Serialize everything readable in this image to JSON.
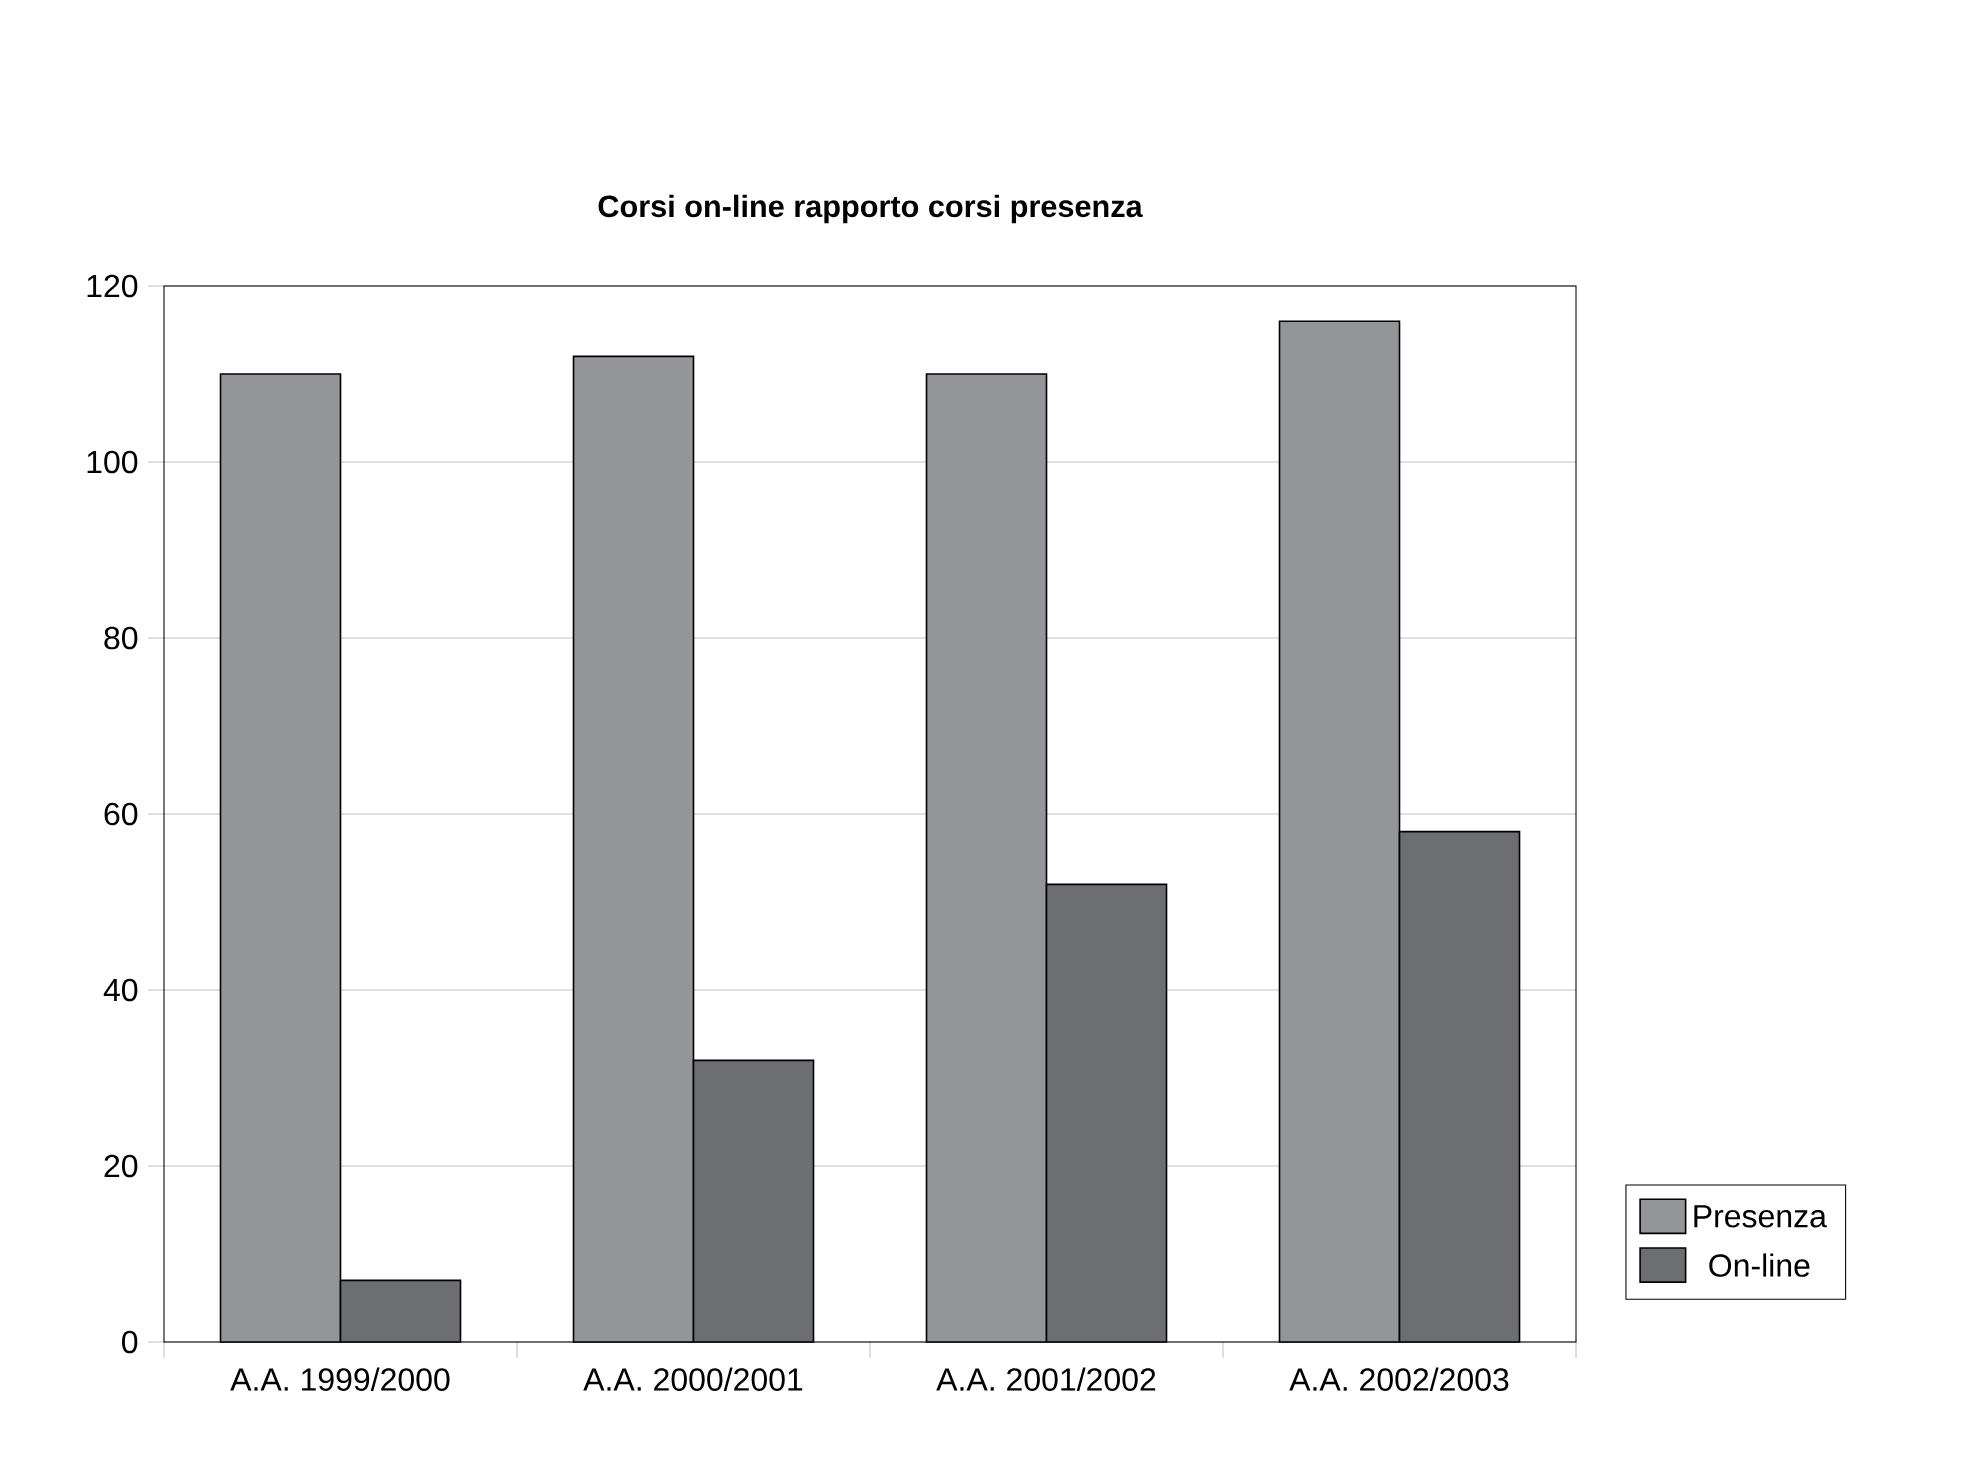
{
  "chart_data": {
    "type": "bar",
    "title": "Corsi on-line rapporto corsi presenza",
    "categories": [
      "A.A. 1999/2000",
      "A.A. 2000/2001",
      "A.A. 2001/2002",
      "A.A. 2002/2003"
    ],
    "series": [
      {
        "name": "Presenza",
        "color": "#939598",
        "values": [
          110,
          112,
          110,
          116
        ]
      },
      {
        "name": "On-line",
        "color": "#6d6e71",
        "values": [
          7,
          32,
          52,
          58
        ]
      }
    ],
    "ylim": [
      0,
      120
    ],
    "yticks": [
      0,
      20,
      40,
      60,
      80,
      100,
      120
    ],
    "grid": "y",
    "legend": "bottom right"
  }
}
